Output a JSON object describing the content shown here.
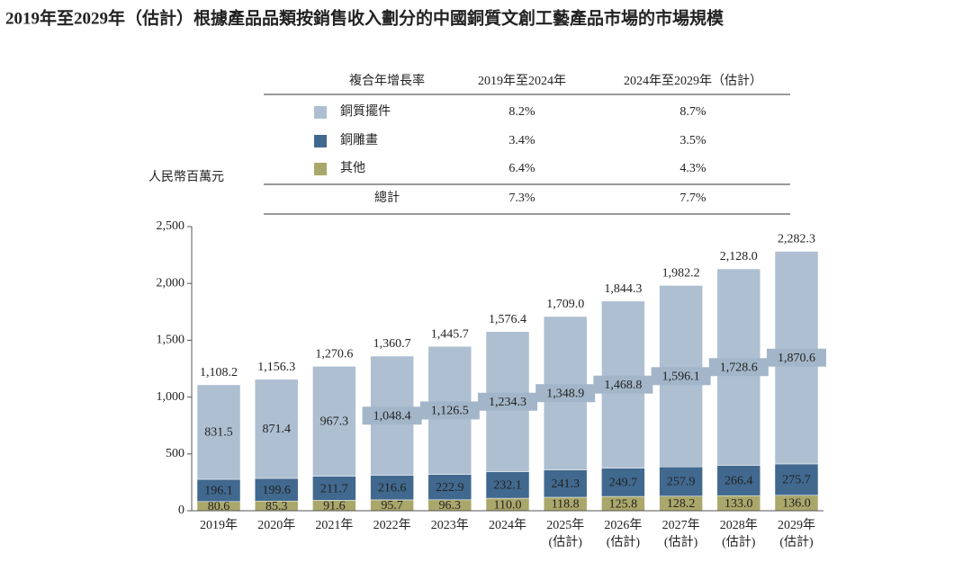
{
  "chart_data": {
    "type": "stacked_bar",
    "title": "2019年至2029年（估計）根據產品品類按銷售收入劃分的中國銅質文創工藝產品市場的市場規模",
    "y_label": "人民幣百萬元",
    "categories": [
      "2019年",
      "2020年",
      "2021年",
      "2022年",
      "2023年",
      "2024年",
      "2025年\n(估計)",
      "2026年\n(估計)",
      "2027年\n(估計)",
      "2028年\n(估計)",
      "2029年\n(估計)"
    ],
    "series": [
      {
        "name": "其他",
        "color": "#aaa76b",
        "values": [
          80.6,
          85.3,
          91.6,
          95.7,
          96.3,
          110.0,
          118.8,
          125.8,
          128.2,
          133.0,
          136.0
        ],
        "value_labels": [
          "80.6",
          "85.3",
          "91.6",
          "95.7",
          "96.3",
          "110.0",
          "118.8",
          "125.8",
          "128.2",
          "133.0",
          "136.0"
        ]
      },
      {
        "name": "銅雕畫",
        "color": "#41698f",
        "values": [
          196.1,
          199.6,
          211.7,
          216.6,
          222.9,
          232.1,
          241.3,
          249.7,
          257.9,
          266.4,
          275.7
        ],
        "value_labels": [
          "196.1",
          "199.6",
          "211.7",
          "216.6",
          "222.9",
          "232.1",
          "241.3",
          "249.7",
          "257.9",
          "266.4",
          "275.7"
        ]
      },
      {
        "name": "銅質擺件",
        "color": "#aebfd2",
        "values": [
          831.5,
          871.4,
          967.3,
          1048.4,
          1126.5,
          1234.3,
          1348.9,
          1468.8,
          1596.1,
          1728.6,
          1870.6
        ],
        "value_labels": [
          "831.5",
          "871.4",
          "967.3",
          "1,048.4",
          "1,126.5",
          "1,234.3",
          "1,348.9",
          "1,468.8",
          "1,596.1",
          "1,728.6",
          "1,870.6"
        ]
      }
    ],
    "totals": [
      1108.2,
      1156.3,
      1270.6,
      1360.7,
      1445.7,
      1576.4,
      1709.0,
      1844.3,
      1982.2,
      2128.0,
      2282.3
    ],
    "total_labels": [
      "1,108.2",
      "1,156.3",
      "1,270.6",
      "1,360.7",
      "1,445.7",
      "1,576.4",
      "1,709.0",
      "1,844.3",
      "1,982.2",
      "2,128.0",
      "2,282.3"
    ],
    "ylim": [
      0,
      2500
    ],
    "yticks": [
      0,
      500,
      {
        "value": 1000,
        "label": "1,000"
      },
      {
        "value": 1500,
        "label": "1,500"
      },
      {
        "value": 2000,
        "label": "2,000"
      },
      {
        "value": 2500,
        "label": "2,500"
      }
    ],
    "cagr_table": {
      "columns": [
        "複合年增長率",
        "2019年至2024年",
        "2024年至2029年（估計）"
      ],
      "rows": [
        [
          "8.2%",
          "8.7%"
        ],
        [
          "3.4%",
          "3.5%"
        ],
        [
          "6.4%",
          "4.3%"
        ]
      ],
      "total": {
        "label": "總計",
        "values": [
          "7.3%",
          "7.7%"
        ]
      }
    }
  }
}
